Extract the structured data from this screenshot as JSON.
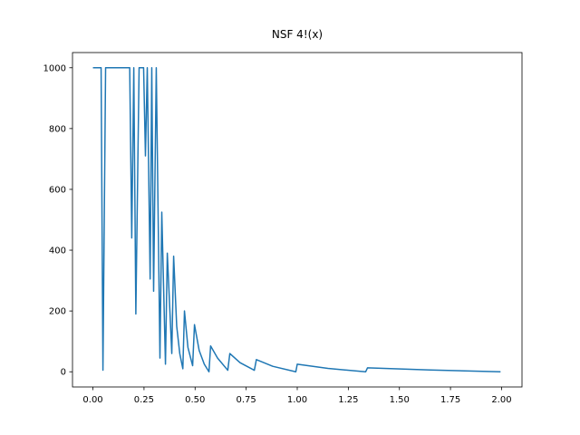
{
  "chart_data": {
    "type": "line",
    "title": "NSF 4!(x)",
    "x": [
      0,
      0.04,
      0.049,
      0.062,
      0.18,
      0.19,
      0.2,
      0.21,
      0.226,
      0.248,
      0.257,
      0.266,
      0.28,
      0.288,
      0.297,
      0.31,
      0.328,
      0.337,
      0.355,
      0.364,
      0.386,
      0.395,
      0.41,
      0.425,
      0.44,
      0.448,
      0.465,
      0.488,
      0.497,
      0.52,
      0.545,
      0.568,
      0.576,
      0.61,
      0.66,
      0.67,
      0.72,
      0.79,
      0.8,
      0.88,
      0.993,
      1.0,
      1.15,
      1.335,
      1.344,
      1.65,
      1.995
    ],
    "series": [
      {
        "name": "NSF 4!(x)",
        "color": "#1f77b4",
        "values": [
          1000,
          1000,
          5,
          1000,
          1000,
          440,
          1000,
          190,
          1000,
          1000,
          710,
          1000,
          305,
          1000,
          265,
          1000,
          45,
          525,
          25,
          390,
          60,
          380,
          150,
          60,
          10,
          200,
          80,
          20,
          155,
          70,
          25,
          0,
          85,
          45,
          5,
          60,
          30,
          5,
          40,
          18,
          0,
          25,
          11,
          0,
          13,
          6,
          0
        ]
      }
    ],
    "xlim": [
      -0.1,
      2.1
    ],
    "ylim": [
      -50,
      1050
    ],
    "xticks": [
      {
        "value": 0,
        "label": "0.00"
      },
      {
        "value": 0.25,
        "label": "0.25"
      },
      {
        "value": 0.5,
        "label": "0.50"
      },
      {
        "value": 0.75,
        "label": "0.75"
      },
      {
        "value": 1,
        "label": "1.00"
      },
      {
        "value": 1.25,
        "label": "1.25"
      },
      {
        "value": 1.5,
        "label": "1.50"
      },
      {
        "value": 1.75,
        "label": "1.75"
      },
      {
        "value": 2,
        "label": "2.00"
      }
    ],
    "yticks": [
      0,
      200,
      400,
      600,
      800,
      1000
    ],
    "grid": false
  }
}
